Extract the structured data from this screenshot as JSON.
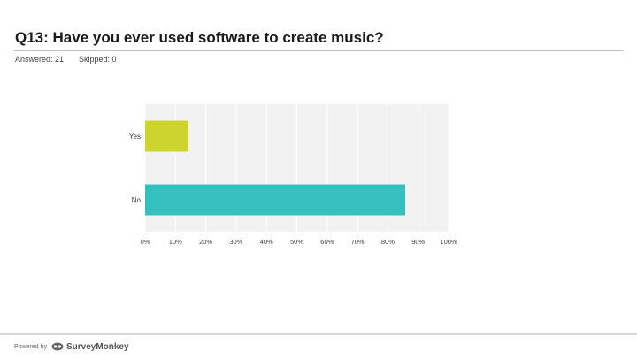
{
  "question": {
    "title": "Q13: Have you ever used software to create music?",
    "answered": "Answered: 21",
    "skipped": "Skipped: 0"
  },
  "footer": {
    "powered_by": "Powered by",
    "brand": "SurveyMonkey",
    "brand_icon": "surveymonkey-logo-icon"
  },
  "colors": {
    "yes_bar": "#cdd42e",
    "no_bar": "#35bfbf",
    "plot_background": "#f2f2f2",
    "gridline": "#ffffff"
  },
  "chart_data": {
    "type": "bar",
    "orientation": "horizontal",
    "categories": [
      "Yes",
      "No"
    ],
    "values": [
      14.29,
      85.71
    ],
    "value_unit": "%",
    "xlim": [
      0,
      100
    ],
    "x_ticks": [
      "0%",
      "10%",
      "20%",
      "30%",
      "40%",
      "50%",
      "60%",
      "70%",
      "80%",
      "90%",
      "100%"
    ],
    "grid": true,
    "legend": "none"
  }
}
